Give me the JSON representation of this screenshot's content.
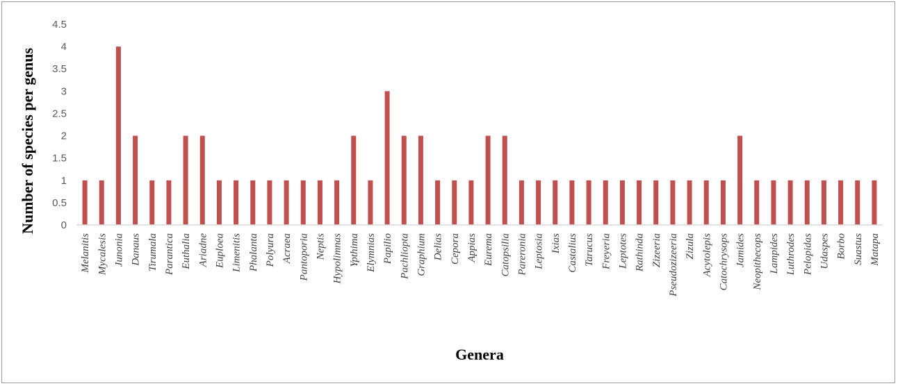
{
  "chart_data": {
    "type": "bar",
    "title": "",
    "xlabel": "Genera",
    "ylabel": "Number of species per genus",
    "ylim": [
      0,
      4.5
    ],
    "yticks": [
      "0",
      "0.5",
      "1",
      "1.5",
      "2",
      "2.5",
      "3",
      "3.5",
      "4",
      "4.5"
    ],
    "grid": false,
    "legend": "none",
    "bar_color": "#c0504d",
    "categories": [
      "Melanitis",
      "Mycalesis",
      "Junonia",
      "Danaus",
      "Tirumala",
      "Parantica",
      "Euthalia",
      "Ariadne",
      "Euploea",
      "Limenitis",
      "Phalanta",
      "Polyura",
      "Acraea",
      "Pantoporia",
      "Neptis",
      "Hypolimnas",
      "Ypthima",
      "Elymnias",
      "Papilio",
      "Pachliopta",
      "Graphium",
      "Delias",
      "Cepora",
      "Appias",
      "Eurema",
      "Catopsilia",
      "Pareronia",
      "Leptosia",
      "Ixias",
      "Castalius",
      "Tarucus",
      "Freyeria",
      "Leptotes",
      "Rathinda",
      "Zizeeria",
      "Pseudozizeeria",
      "Zizula",
      "Acytolepis",
      "Catochrysops",
      "Jamides",
      "Neopithecops",
      "Lampides",
      "Luthrodes",
      "Pelopidas",
      "Udaspes",
      "Borbo",
      "Suastus",
      "Matapa"
    ],
    "values": [
      1,
      1,
      4,
      2,
      1,
      1,
      2,
      2,
      1,
      1,
      1,
      1,
      1,
      1,
      1,
      1,
      2,
      1,
      3,
      2,
      2,
      1,
      1,
      1,
      2,
      2,
      1,
      1,
      1,
      1,
      1,
      1,
      1,
      1,
      1,
      1,
      1,
      1,
      1,
      2,
      1,
      1,
      1,
      1,
      1,
      1,
      1,
      1
    ]
  }
}
